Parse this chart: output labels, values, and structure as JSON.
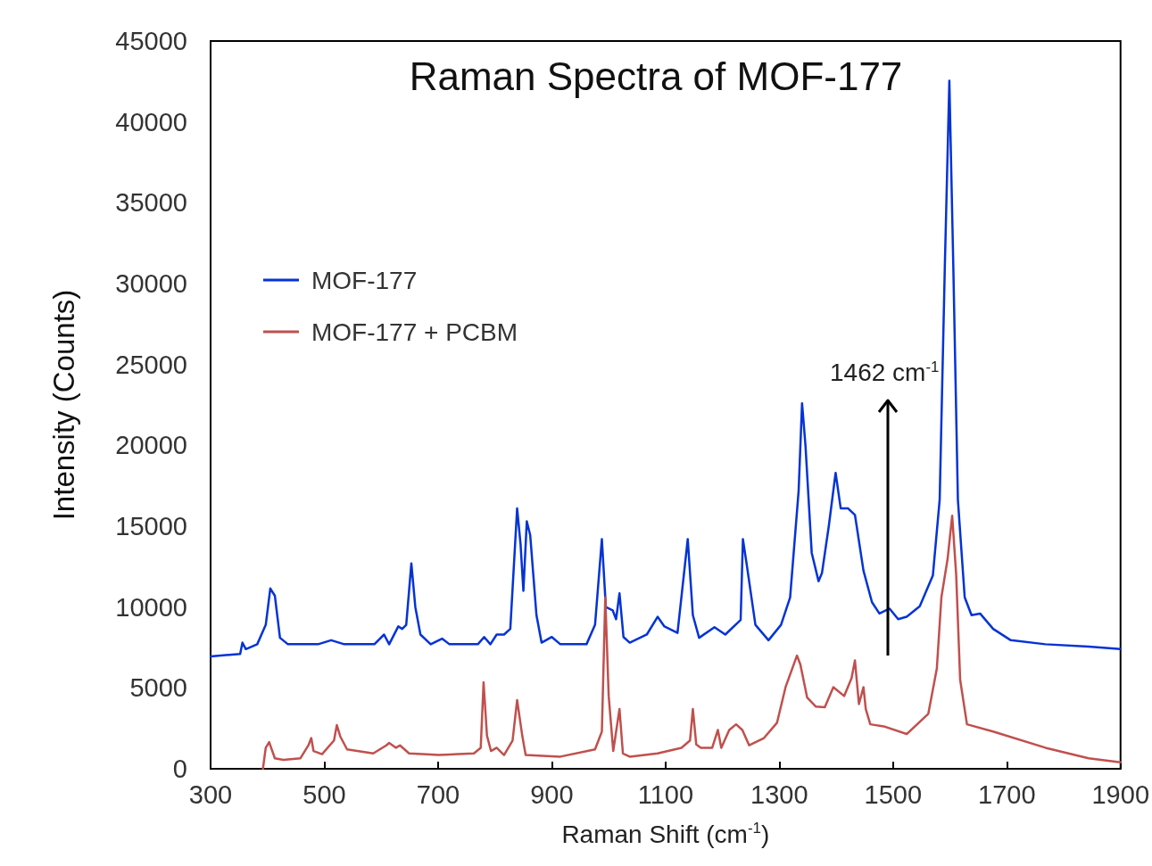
{
  "chart_data": {
    "type": "line",
    "title": "Raman Spectra of MOF-177",
    "xlabel": "Raman Shift (cm$^{-1}$)",
    "ylabel": "Intensity (Counts)",
    "xlim": [
      300,
      1900
    ],
    "xticks": [
      300,
      500,
      700,
      900,
      1100,
      1300,
      1500,
      1700,
      1900
    ],
    "ylim": [
      0,
      45000
    ],
    "yticks": [
      0,
      5000,
      10000,
      15000,
      20000,
      25000,
      30000,
      35000,
      40000,
      45000
    ],
    "grid": false,
    "legend": "top left",
    "marker": "none",
    "line_style": "solid",
    "annotations": [
      "1462 cm$^{-1}$"
    ],
    "series": [
      {
        "name": "MOF-177",
        "color": "#0433d6",
        "x": [
          300,
          352,
          356,
          362,
          382,
          397,
          405,
          413,
          422,
          436,
          489,
          512,
          535,
          588,
          605,
          614,
          630,
          637,
          644,
          653,
          660,
          669,
          687,
          707,
          720,
          770,
          781,
          792,
          803,
          816,
          827,
          839,
          845,
          850,
          856,
          862,
          873,
          882,
          900,
          915,
          961,
          976,
          988,
          995,
          1007,
          1013,
          1019,
          1026,
          1037,
          1067,
          1086,
          1098,
          1121,
          1139,
          1148,
          1159,
          1186,
          1205,
          1232,
          1236,
          1242,
          1258,
          1281,
          1303,
          1319,
          1334,
          1340,
          1346,
          1357,
          1369,
          1375,
          1387,
          1399,
          1408,
          1421,
          1433,
          1448,
          1463,
          1476,
          1494,
          1509,
          1524,
          1547,
          1570,
          1582,
          1591,
          1599,
          1606,
          1614,
          1626,
          1638,
          1653,
          1676,
          1707,
          1768,
          1844,
          1900
        ],
        "values": [
          6950,
          7100,
          7800,
          7400,
          7700,
          8900,
          11150,
          10700,
          8100,
          7700,
          7700,
          7950,
          7700,
          7700,
          8300,
          7700,
          8800,
          8650,
          8900,
          12700,
          10000,
          8300,
          7700,
          8050,
          7700,
          7700,
          8150,
          7700,
          8300,
          8300,
          8650,
          16100,
          13900,
          11000,
          15300,
          14450,
          9500,
          7800,
          8150,
          7700,
          7700,
          8900,
          14200,
          10000,
          9800,
          9250,
          10850,
          8150,
          7800,
          8300,
          9400,
          8800,
          8400,
          14200,
          9500,
          8100,
          8750,
          8300,
          9200,
          14200,
          12800,
          8900,
          7950,
          8900,
          10600,
          17200,
          22600,
          20000,
          13350,
          11600,
          12100,
          15000,
          18300,
          16100,
          16100,
          15700,
          12250,
          10300,
          9600,
          9900,
          9250,
          9400,
          10050,
          11950,
          16650,
          31000,
          42550,
          31000,
          16650,
          10600,
          9500,
          9600,
          8650,
          7950,
          7700,
          7550,
          7400
        ]
      },
      {
        "name": "MOF-177 + PCBM",
        "color": "#c0504d",
        "x": [
          392,
          397,
          403,
          413,
          428,
          458,
          472,
          477,
          481,
          496,
          517,
          522,
          528,
          540,
          586,
          609,
          614,
          626,
          633,
          649,
          702,
          763,
          775,
          780,
          786,
          793,
          803,
          816,
          831,
          839,
          848,
          854,
          915,
          976,
          988,
          994,
          1000,
          1008,
          1019,
          1025,
          1037,
          1086,
          1128,
          1143,
          1148,
          1154,
          1162,
          1182,
          1192,
          1198,
          1212,
          1224,
          1235,
          1247,
          1273,
          1296,
          1311,
          1331,
          1337,
          1349,
          1364,
          1380,
          1395,
          1414,
          1427,
          1433,
          1440,
          1448,
          1452,
          1460,
          1486,
          1524,
          1562,
          1577,
          1585,
          1596,
          1604,
          1611,
          1618,
          1630,
          1676,
          1768,
          1844,
          1900
        ],
        "values": [
          0,
          1300,
          1650,
          650,
          550,
          650,
          1450,
          1900,
          1100,
          900,
          1750,
          2700,
          2000,
          1200,
          950,
          1450,
          1600,
          1300,
          1450,
          950,
          850,
          950,
          1300,
          5350,
          2050,
          1100,
          1300,
          850,
          1750,
          4250,
          2050,
          850,
          750,
          1200,
          2300,
          10600,
          4500,
          1100,
          3700,
          950,
          750,
          950,
          1300,
          1750,
          3700,
          1500,
          1300,
          1300,
          2400,
          1300,
          2400,
          2750,
          2400,
          1450,
          1900,
          2850,
          5050,
          7000,
          6450,
          4400,
          3850,
          3800,
          5050,
          4500,
          5600,
          6700,
          4000,
          5050,
          3700,
          2750,
          2600,
          2150,
          3400,
          6200,
          10600,
          13000,
          15650,
          12000,
          5500,
          2750,
          2300,
          1300,
          650,
          400
        ]
      }
    ]
  }
}
